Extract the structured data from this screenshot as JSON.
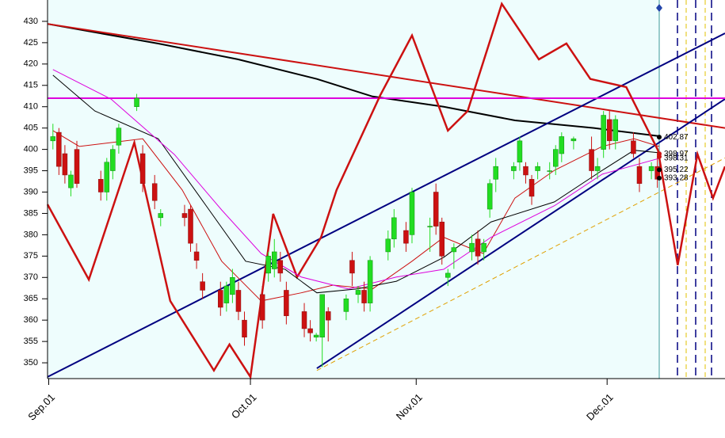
{
  "chart_data": {
    "type": "candlestick",
    "xlim": [
      -0.9,
      112.3
    ],
    "ylim": [
      346.3,
      435
    ],
    "yticks": [
      350,
      355,
      360,
      365,
      370,
      375,
      380,
      385,
      390,
      395,
      400,
      405,
      410,
      415,
      420,
      425,
      430
    ],
    "xticks": [
      {
        "value": -0.7,
        "label": "Sep.01"
      },
      {
        "value": 33,
        "label": "Oct.01"
      },
      {
        "value": 60.7,
        "label": "Nov.01"
      },
      {
        "value": 92.6,
        "label": "Dec.01"
      }
    ],
    "up_color": "#22dd22",
    "down_color": "#cc1111",
    "x": [
      0,
      1,
      2,
      3,
      4,
      8,
      9,
      10,
      11,
      14,
      15,
      17,
      18,
      22,
      23,
      24,
      25,
      28,
      29,
      30,
      31,
      32,
      35,
      36,
      37,
      38,
      39,
      42,
      43,
      44,
      45,
      46,
      49,
      50,
      51,
      52,
      53,
      56,
      57,
      59,
      60,
      63,
      64,
      65,
      66,
      67,
      70,
      71,
      72,
      73,
      74,
      77,
      78,
      79,
      80,
      81,
      83,
      84,
      85,
      87,
      90,
      91,
      92,
      93,
      94,
      97,
      98,
      100,
      101
    ],
    "open": [
      402,
      404,
      399,
      391,
      400,
      393,
      390,
      395,
      401,
      410,
      399,
      392,
      384,
      385,
      386,
      376,
      369,
      367,
      364,
      366,
      367,
      360,
      366,
      371,
      372,
      374,
      367,
      362,
      358,
      356,
      356,
      362,
      362,
      374,
      366,
      367,
      364,
      376,
      379,
      381,
      380,
      382,
      390,
      383,
      370,
      376,
      376,
      379,
      376,
      386,
      393,
      395,
      397,
      396,
      393,
      395,
      395,
      396,
      399,
      402,
      400,
      395,
      400,
      407,
      402,
      402,
      396,
      395,
      396
    ],
    "high": [
      406,
      405,
      401,
      395,
      402,
      395,
      398,
      401,
      406,
      413,
      401,
      394,
      386,
      387,
      387,
      378,
      371,
      369,
      369,
      372,
      369,
      362,
      368,
      376,
      379,
      376,
      369,
      364,
      360,
      357,
      366,
      363,
      366,
      376,
      368,
      369,
      375,
      381,
      386,
      383,
      391,
      384,
      392,
      384,
      372,
      378,
      380,
      381,
      379,
      393,
      398,
      397,
      403,
      397,
      394,
      397,
      397,
      401,
      404,
      403,
      403,
      398,
      409,
      409,
      408,
      404,
      398,
      397,
      399
    ],
    "low": [
      400,
      394,
      392,
      389,
      391,
      388,
      388,
      393,
      399,
      409,
      390,
      386,
      382,
      382,
      376,
      372,
      365,
      361,
      362,
      364,
      360,
      354,
      358,
      369,
      370,
      369,
      359,
      356,
      355,
      355,
      349,
      355,
      360,
      368,
      364,
      362,
      362,
      374,
      377,
      376,
      378,
      376,
      380,
      373,
      368,
      372,
      374,
      373,
      374,
      384,
      390,
      393,
      395,
      392,
      387,
      393,
      393,
      394,
      397,
      400,
      393,
      393,
      398,
      400,
      400,
      398,
      390,
      393,
      391
    ],
    "close": [
      403,
      396,
      394,
      394,
      392,
      390,
      397,
      400,
      405,
      412,
      392,
      388,
      385,
      384,
      378,
      374,
      367,
      363,
      368,
      370,
      362,
      356,
      360,
      375,
      376,
      371,
      361,
      358,
      357,
      356.5,
      366,
      360,
      365,
      371,
      367,
      364,
      374,
      379,
      384,
      378,
      390,
      382,
      382,
      375,
      371,
      377,
      378,
      375,
      378,
      392,
      396,
      396,
      402,
      394,
      389,
      396,
      395,
      400,
      403,
      402.5,
      395,
      396,
      408,
      402,
      407,
      399,
      392,
      396,
      393
    ],
    "lines": [
      {
        "color": "#000000",
        "width": 2,
        "x": [
          -0.9,
          17.6,
          30.9,
          44.1,
          53.4,
          65.3,
          77.2,
          90.4,
          101.3
        ],
        "values": [
          429.4,
          424.8,
          421.1,
          416.5,
          412.4,
          410,
          406.8,
          405,
          403.1
        ]
      },
      {
        "color": "#cc1111",
        "width": 2,
        "x": [
          -0.9,
          112.3
        ],
        "values": [
          429.4,
          405
        ]
      },
      {
        "color": "#000080",
        "width": 2,
        "x": [
          -0.9,
          112.3
        ],
        "values": [
          346.7,
          427.2
        ]
      },
      {
        "color": "#000080",
        "width": 2,
        "x": [
          44.1,
          112.3
        ],
        "values": [
          348.7,
          411.8
        ]
      },
      {
        "color": "#e0a000",
        "width": 1,
        "dashed": true,
        "x": [
          44.1,
          112.3
        ],
        "values": [
          348.2,
          398
        ]
      },
      {
        "color": "#dd00dd",
        "width": 2,
        "x": [
          -0.9,
          112.3
        ],
        "values": [
          412,
          412
        ]
      },
      {
        "color": "#cc1111",
        "width": 2.5,
        "x": [
          -0.9,
          6,
          13.6,
          19.6,
          26.9,
          29.5,
          33,
          36.8,
          40.8,
          44.8,
          47.4,
          54.7,
          60,
          66,
          69.3,
          75,
          81.2,
          85.8,
          89.8,
          95.8,
          101.1,
          104.4,
          107.7,
          110.3,
          112.3
        ],
        "values": [
          387.1,
          369.5,
          401.6,
          364.5,
          348.2,
          354.3,
          346.7,
          384.9,
          370.1,
          379.4,
          390.5,
          412.7,
          426.7,
          404.4,
          409,
          434.1,
          421.1,
          424.8,
          416.5,
          414.6,
          399.8,
          372.9,
          398.9,
          388.6,
          396
        ]
      },
      {
        "color": "#cc1111",
        "width": 1,
        "x": [
          0,
          4.4,
          15,
          21.6,
          28.2,
          34.8,
          41.5,
          46.8,
          53.4,
          60,
          65.3,
          71.9,
          77.2,
          83.8,
          91.8,
          97.1,
          101.3
        ],
        "values": [
          404.4,
          400.7,
          402.5,
          390.5,
          373.8,
          364.5,
          366.4,
          368.2,
          367.3,
          373.8,
          379.4,
          375.6,
          388.6,
          395.1,
          400.7,
          402.5,
          400.7
        ]
      },
      {
        "color": "#000000",
        "width": 1,
        "x": [
          0,
          7,
          17.6,
          25.6,
          32.2,
          38.8,
          44.1,
          50.7,
          57.4,
          65.3,
          73.2,
          83.8,
          91.8,
          97.1,
          101.3
        ],
        "values": [
          417.4,
          409,
          402.5,
          386.8,
          373.8,
          371.9,
          366.4,
          367.3,
          369.1,
          374.7,
          383,
          387.7,
          395.1,
          399.8,
          399.2
        ]
      },
      {
        "color": "#dd00dd",
        "width": 1,
        "x": [
          0,
          9.7,
          20.3,
          28.2,
          34.8,
          41.5,
          49.4,
          57.4,
          65.3,
          73.2,
          83.8,
          91.8,
          101.3
        ],
        "values": [
          418.7,
          411.8,
          398.8,
          385.8,
          375.6,
          370.1,
          367.3,
          370.1,
          371.9,
          379.4,
          386.8,
          394.2,
          397.9
        ]
      }
    ],
    "price_labels": [
      402.87,
      398.97,
      398.31,
      395.22,
      393.28
    ],
    "price_label_colors": [
      "#000000",
      "#cc1111",
      "#cc1111",
      "#000000",
      "#000000"
    ]
  }
}
